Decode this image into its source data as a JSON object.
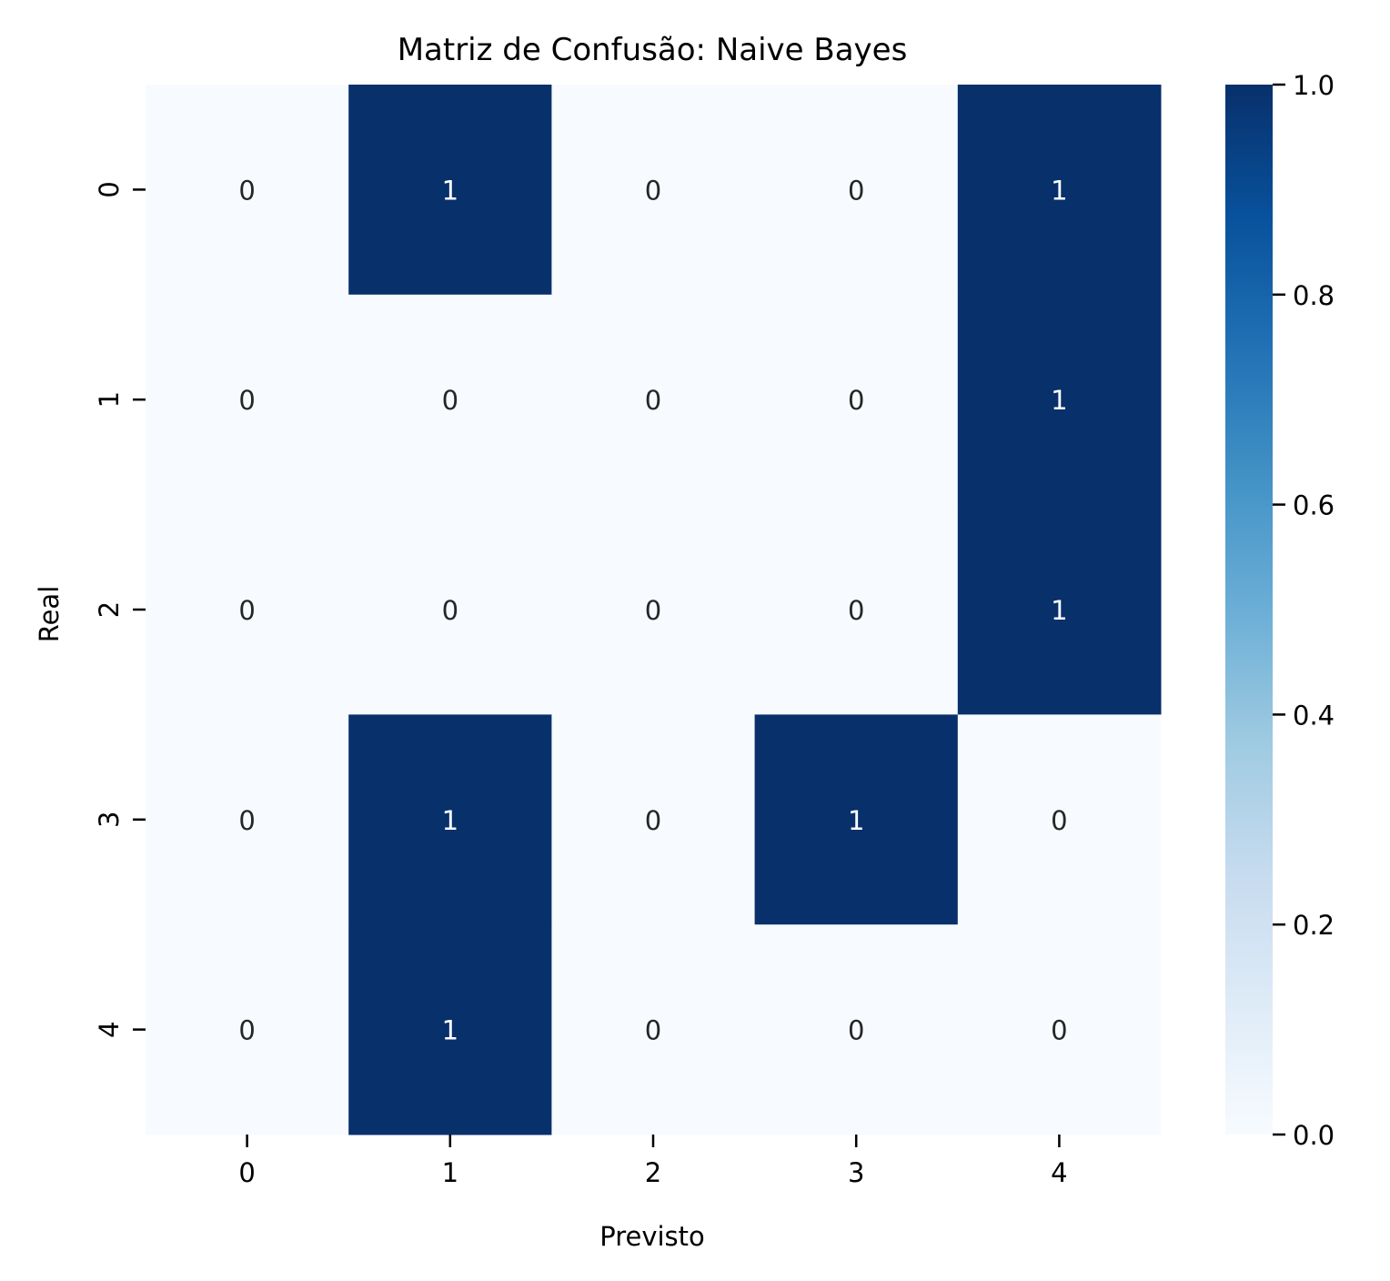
{
  "chart_data": {
    "type": "heatmap",
    "title": "Matriz de Confusão: Naive Bayes",
    "xlabel": "Previsto",
    "ylabel": "Real",
    "x_categories": [
      "0",
      "1",
      "2",
      "3",
      "4"
    ],
    "y_categories": [
      "0",
      "1",
      "2",
      "3",
      "4"
    ],
    "values": [
      [
        0,
        1,
        0,
        0,
        1
      ],
      [
        0,
        0,
        0,
        0,
        1
      ],
      [
        0,
        0,
        0,
        0,
        1
      ],
      [
        0,
        1,
        0,
        1,
        0
      ],
      [
        0,
        1,
        0,
        0,
        0
      ]
    ],
    "annotations": true,
    "colormap": "Blues",
    "vmin": 0,
    "vmax": 1,
    "colorbar": {
      "ticks": [
        0.0,
        0.2,
        0.4,
        0.6,
        0.8,
        1.0
      ],
      "tick_labels": [
        "0.0",
        "0.2",
        "0.4",
        "0.6",
        "0.8",
        "1.0"
      ]
    },
    "colors": {
      "low": "#f7fbff",
      "high": "#08306b",
      "annotation_dark": "#262626",
      "annotation_light": "#ffffff"
    }
  }
}
